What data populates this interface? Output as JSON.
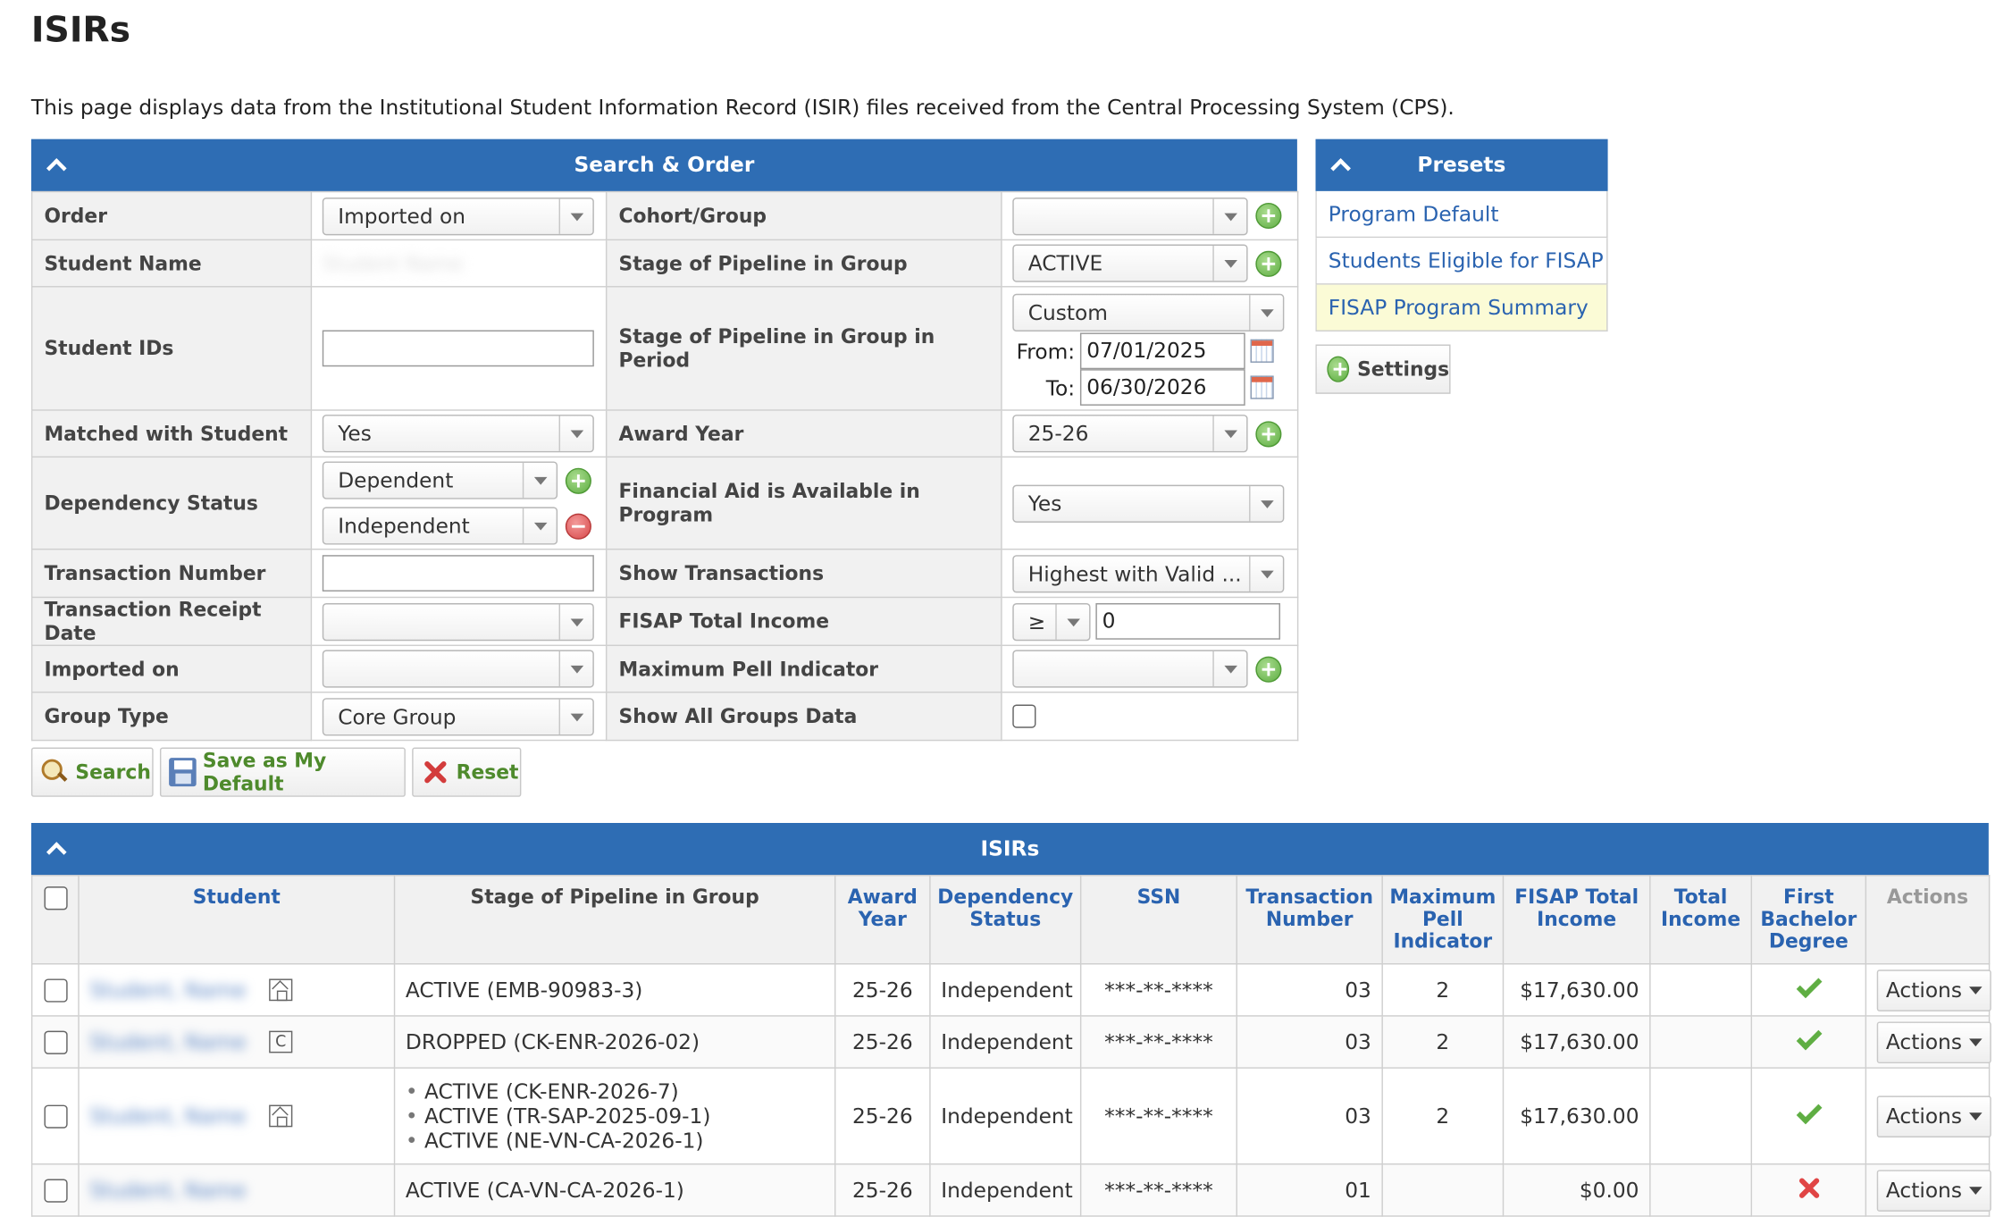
{
  "page": {
    "title": "ISIRs",
    "intro": "This page displays data from the Institutional Student Information Record (ISIR) files received from the Central Processing System (CPS)."
  },
  "search": {
    "title": "Search & Order",
    "order": {
      "label": "Order",
      "value": "Imported on"
    },
    "cohort_group": {
      "label": "Cohort/Group",
      "value": ""
    },
    "student_name": {
      "label": "Student Name",
      "value": "Student Name"
    },
    "stage_pipeline": {
      "label": "Stage of Pipeline in Group",
      "value": "ACTIVE"
    },
    "student_ids": {
      "label": "Student IDs",
      "value": ""
    },
    "stage_period": {
      "label": "Stage of Pipeline in Group in Period",
      "value": "Custom",
      "from_label": "From:",
      "from_value": "07/01/2025",
      "to_label": "To:",
      "to_value": "06/30/2026"
    },
    "matched": {
      "label": "Matched with Student",
      "value": "Yes"
    },
    "award_year": {
      "label": "Award Year",
      "value": "25-26"
    },
    "dependency": {
      "label": "Dependency Status",
      "value1": "Dependent",
      "value2": "Independent"
    },
    "financial_aid": {
      "label": "Financial Aid is Available in Program",
      "value": "Yes"
    },
    "transaction_number": {
      "label": "Transaction Number",
      "value": ""
    },
    "show_transactions": {
      "label": "Show Transactions",
      "value": "Highest with Valid ..."
    },
    "receipt_date": {
      "label": "Transaction Receipt Date",
      "value": ""
    },
    "fisap_income": {
      "label": "FISAP Total Income",
      "operator": "≥",
      "value": "0"
    },
    "imported_on": {
      "label": "Imported on",
      "value": ""
    },
    "max_pell": {
      "label": "Maximum Pell Indicator",
      "value": ""
    },
    "group_type": {
      "label": "Group Type",
      "value": "Core Group"
    },
    "show_all_groups": {
      "label": "Show All Groups Data"
    }
  },
  "buttons": {
    "search": "Search",
    "save_default": "Save as My Default",
    "reset": "Reset",
    "settings": "Settings"
  },
  "presets": {
    "title": "Presets",
    "items": [
      "Program Default",
      "Students Eligible for FISAP",
      "FISAP Program Summary"
    ]
  },
  "results": {
    "title": "ISIRs",
    "columns": {
      "student": "Student",
      "stage": "Stage of Pipeline in Group",
      "award_year": "Award Year",
      "dependency": "Dependency Status",
      "ssn": "SSN",
      "transaction": "Transaction Number",
      "max_pell": "Maximum Pell Indicator",
      "fisap": "FISAP Total Income",
      "total_income": "Total Income",
      "first_bachelor": "First Bachelor Degree",
      "actions": "Actions"
    },
    "rows": [
      {
        "student": "Student, Name",
        "stage": "ACTIVE (EMB-90983-3)",
        "award_year": "25-26",
        "dependency": "Independent",
        "ssn": "***-**-****",
        "transaction": "03",
        "max_pell": "2",
        "fisap": "$17,630.00",
        "total_income": "",
        "actions": "Actions"
      },
      {
        "student": "Student, Name",
        "stage": "DROPPED (CK-ENR-2026-02)",
        "award_year": "25-26",
        "dependency": "Independent",
        "ssn": "***-**-****",
        "transaction": "03",
        "max_pell": "2",
        "fisap": "$17,630.00",
        "total_income": "",
        "actions": "Actions"
      },
      {
        "student": "Student, Name",
        "stages": [
          "ACTIVE (CK-ENR-2026-7)",
          "ACTIVE (TR-SAP-2025-09-1)",
          "ACTIVE (NE-VN-CA-2026-1)"
        ],
        "award_year": "25-26",
        "dependency": "Independent",
        "ssn": "***-**-****",
        "transaction": "03",
        "max_pell": "2",
        "fisap": "$17,630.00",
        "total_income": "",
        "actions": "Actions"
      },
      {
        "student": "Student, Name",
        "stage": "ACTIVE (CA-VN-CA-2026-1)",
        "award_year": "25-26",
        "dependency": "Independent",
        "ssn": "***-**-****",
        "transaction": "01",
        "max_pell": "",
        "fisap": "$0.00",
        "total_income": "",
        "actions": "Actions"
      }
    ]
  }
}
